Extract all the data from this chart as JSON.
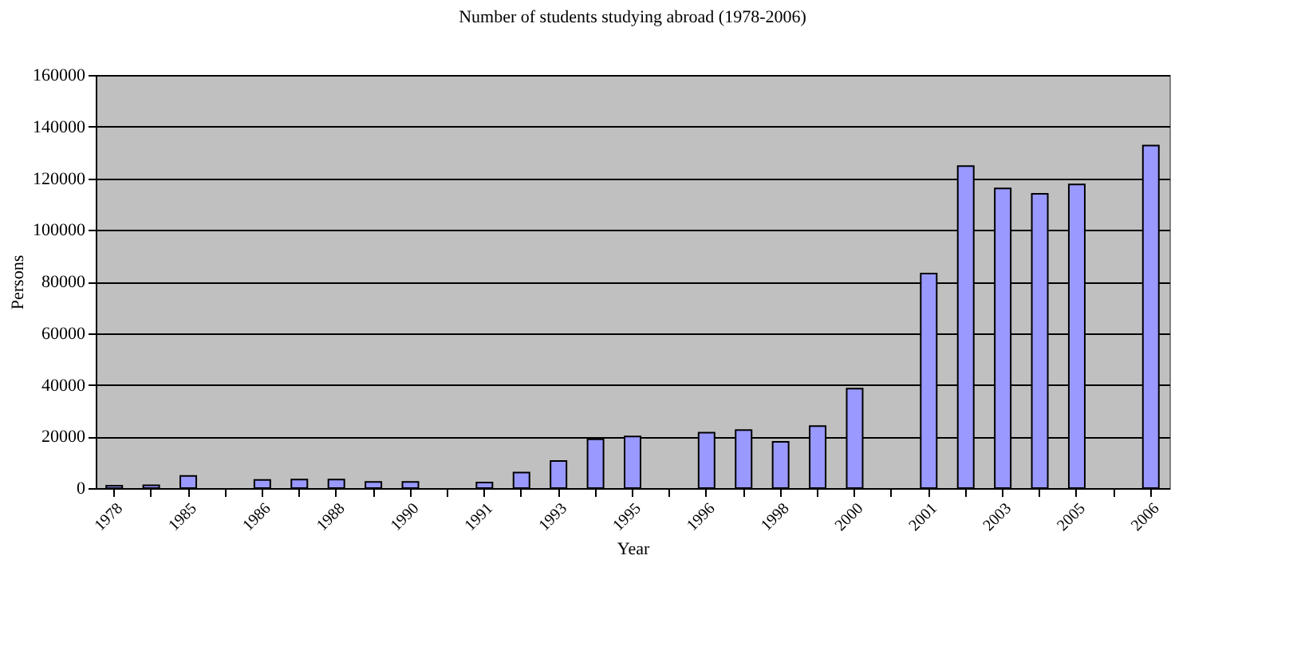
{
  "chart_data": {
    "type": "bar",
    "title": "Number of students studying abroad (1978-2006)",
    "xlabel": "Year",
    "ylabel": "Persons",
    "categories": [
      "1978",
      null,
      "1985",
      null,
      "1986",
      null,
      "1988",
      null,
      "1990",
      null,
      "1991",
      null,
      "1993",
      null,
      "1995",
      null,
      "1996",
      null,
      "1998",
      null,
      "2000",
      null,
      "2001",
      null,
      "2003",
      null,
      "2005",
      null,
      "2006"
    ],
    "values": [
      900,
      1100,
      4700,
      null,
      3200,
      3300,
      3300,
      2400,
      2400,
      null,
      2200,
      6000,
      10500,
      18900,
      20000,
      null,
      21500,
      22500,
      17900,
      24000,
      38500,
      null,
      83100,
      124700,
      116100,
      114000,
      117600,
      null,
      132700
    ],
    "color": "#9999ff",
    "ylim": [
      0,
      160000
    ],
    "yticks": [
      0,
      20000,
      40000,
      60000,
      80000,
      100000,
      120000,
      140000,
      160000
    ],
    "grid": "y"
  }
}
